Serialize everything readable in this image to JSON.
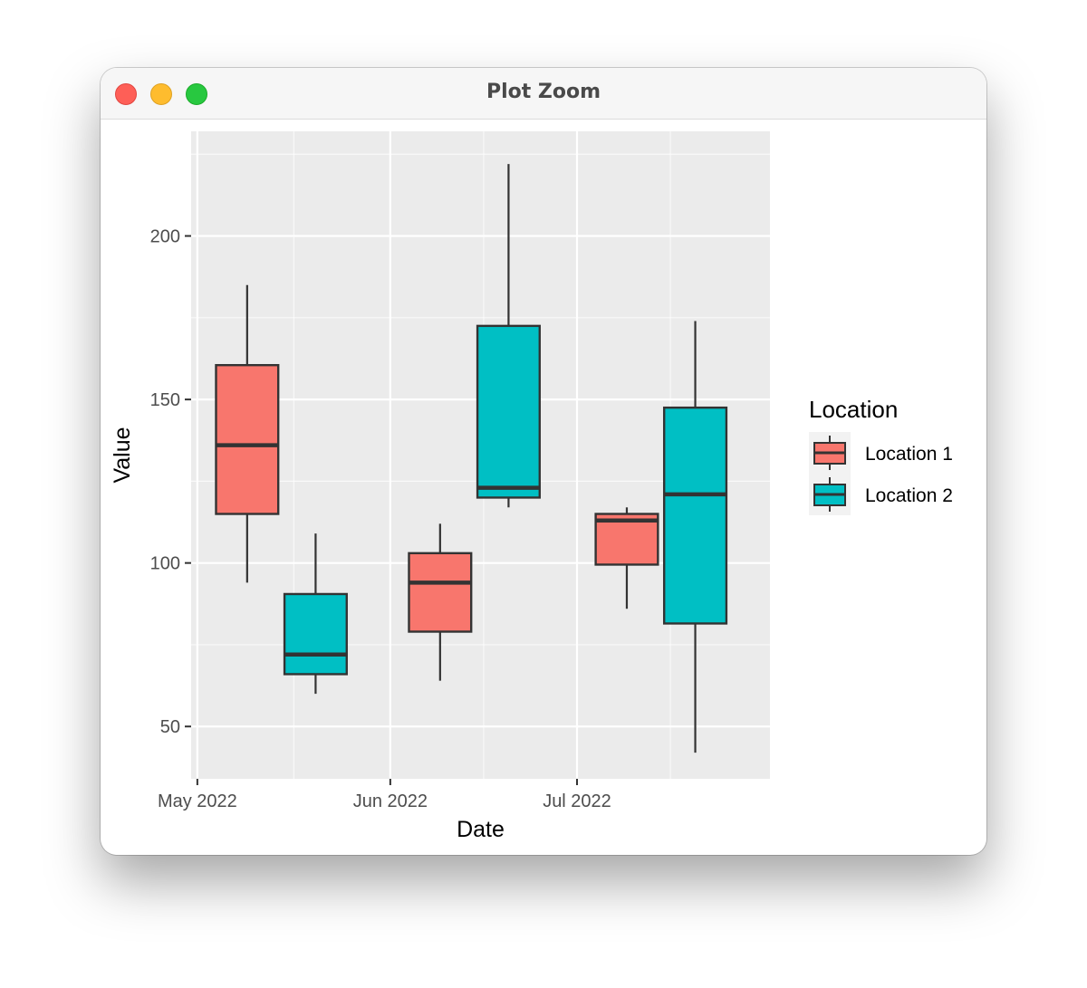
{
  "window": {
    "title": "Plot Zoom"
  },
  "colors": {
    "panel_bg": "#ebebeb",
    "grid_major": "#ffffff",
    "location1": "#f8766d",
    "location2": "#00bfc4",
    "box_line": "#333333"
  },
  "chart_data": {
    "type": "boxplot",
    "xlabel": "Date",
    "ylabel": "Value",
    "x_tick_labels": [
      {
        "date": "2022-05-01",
        "label": "May 2022"
      },
      {
        "date": "2022-06-01",
        "label": "Jun 2022"
      },
      {
        "date": "2022-07-01",
        "label": "Jul 2022"
      }
    ],
    "y_ticks": [
      50,
      100,
      150,
      200
    ],
    "xlim": [
      "2022-04-30",
      "2022-08-01"
    ],
    "ylim": [
      34,
      232
    ],
    "grid": true,
    "legend": {
      "title": "Location",
      "position": "right",
      "entries": [
        "Location 1",
        "Location 2"
      ]
    },
    "boxes": [
      {
        "series": "Location 1",
        "x_start": "2022-05-04",
        "x_end": "2022-05-14",
        "lower_whisker": 94,
        "q1": 115,
        "median": 136,
        "q3": 160.5,
        "upper_whisker": 185
      },
      {
        "series": "Location 2",
        "x_start": "2022-05-15",
        "x_end": "2022-05-25",
        "lower_whisker": 60,
        "q1": 66,
        "median": 72,
        "q3": 90.5,
        "upper_whisker": 109
      },
      {
        "series": "Location 1",
        "x_start": "2022-06-04",
        "x_end": "2022-06-14",
        "lower_whisker": 64,
        "q1": 79,
        "median": 94,
        "q3": 103,
        "upper_whisker": 112
      },
      {
        "series": "Location 2",
        "x_start": "2022-06-15",
        "x_end": "2022-06-25",
        "lower_whisker": 117,
        "q1": 120,
        "median": 123,
        "q3": 172.5,
        "upper_whisker": 222
      },
      {
        "series": "Location 1",
        "x_start": "2022-07-04",
        "x_end": "2022-07-14",
        "lower_whisker": 86,
        "q1": 99.5,
        "median": 113,
        "q3": 115,
        "upper_whisker": 117
      },
      {
        "series": "Location 2",
        "x_start": "2022-07-15",
        "x_end": "2022-07-25",
        "lower_whisker": 42,
        "q1": 81.5,
        "median": 121,
        "q3": 147.5,
        "upper_whisker": 174
      }
    ]
  }
}
